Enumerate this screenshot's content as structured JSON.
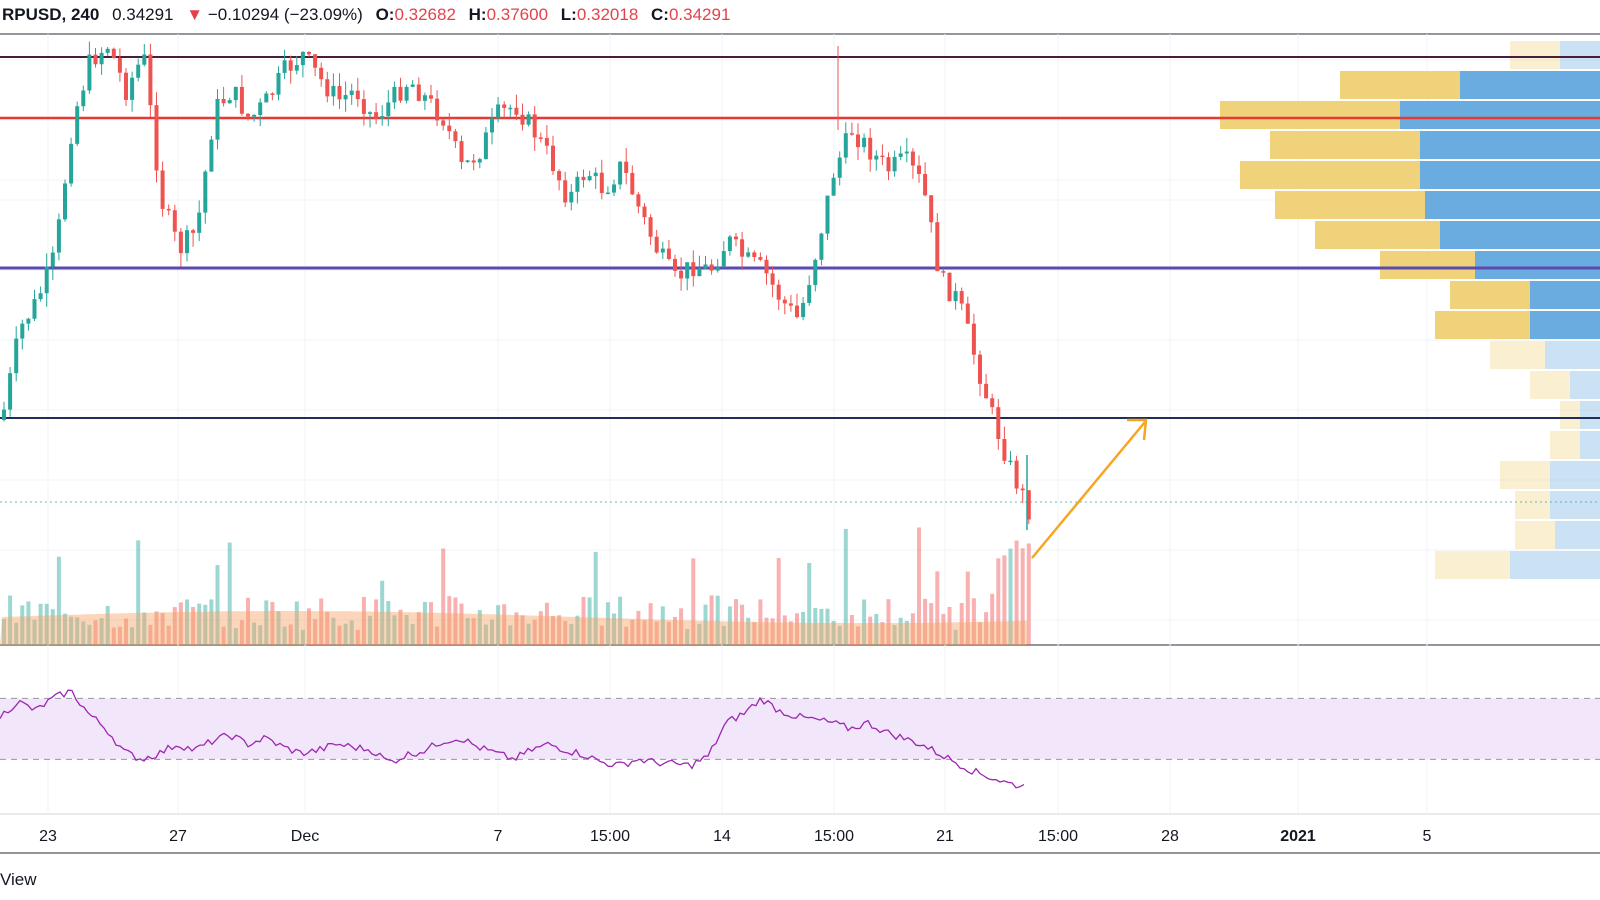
{
  "header": {
    "symbol": "RPUSD, 240",
    "last": "0.34291",
    "arrow": "▼",
    "change": "−0.10294 (−23.09%)",
    "o_label": "O:",
    "o_value": "0.32682",
    "h_label": "H:",
    "h_value": "0.37600",
    "l_label": "L:",
    "l_value": "0.32018",
    "c_label": "C:",
    "c_value": "0.34291"
  },
  "footer": {
    "text": "View"
  },
  "colors": {
    "up": "#26a69a",
    "down": "#ef5350",
    "rsi": "#9c27b0",
    "rsi_band": "#f2e6fb",
    "vp_up": "#f0d27a",
    "vp_down": "#6aace0",
    "arrow": "#f5a623",
    "line_top": "#4a1e3a",
    "line_red": "#e53935",
    "line_purple": "#5c4ab1",
    "line_navy": "#1f2d5a"
  },
  "chart_data": {
    "type": "candlestick",
    "x_tick_labels": [
      "23",
      "27",
      "Dec",
      "7",
      "15:00",
      "14",
      "15:00",
      "21",
      "15:00",
      "28",
      "2021",
      "5"
    ],
    "last_price": 0.34291,
    "horizontal_lines": [
      {
        "name": "top-line",
        "color": "#4a1e3a"
      },
      {
        "name": "red-line",
        "color": "#e53935"
      },
      {
        "name": "purple-line",
        "color": "#5c4ab1"
      },
      {
        "name": "navy-line",
        "color": "#1f2d5a"
      }
    ],
    "rsi_band": [
      30,
      70
    ],
    "price_path": [
      420,
      330,
      300,
      255,
      120,
      60,
      45,
      90,
      55,
      200,
      250,
      230,
      110,
      90,
      120,
      100,
      70,
      55,
      80,
      100,
      90,
      120,
      100,
      80,
      100,
      120,
      170,
      150,
      115,
      105,
      130,
      160,
      200,
      170,
      190,
      165,
      210,
      250,
      280,
      265,
      270,
      240,
      260,
      270,
      300,
      320,
      250,
      170,
      130,
      150,
      170,
      160,
      185,
      280,
      300,
      360,
      420,
      470,
      510
    ],
    "rsi_path": [
      58,
      68,
      62,
      70,
      75,
      60,
      50,
      35,
      30,
      34,
      40,
      36,
      42,
      46,
      40,
      44,
      38,
      34,
      36,
      40,
      38,
      36,
      28,
      33,
      36,
      42,
      44,
      38,
      34,
      30,
      36,
      40,
      36,
      33,
      28,
      26,
      30,
      28,
      27,
      26,
      32,
      54,
      60,
      70,
      62,
      58,
      56,
      54,
      50,
      54,
      48,
      44,
      40,
      34,
      28,
      22,
      18,
      14,
      12
    ],
    "volume_profile": [
      {
        "up": 50,
        "down": 40
      },
      {
        "up": 120,
        "down": 140
      },
      {
        "up": 180,
        "down": 200
      },
      {
        "up": 150,
        "down": 180
      },
      {
        "up": 180,
        "down": 180
      },
      {
        "up": 150,
        "down": 175
      },
      {
        "up": 125,
        "down": 160
      },
      {
        "up": 95,
        "down": 125
      },
      {
        "up": 80,
        "down": 70
      },
      {
        "up": 95,
        "down": 70
      },
      {
        "up": 55,
        "down": 55
      },
      {
        "up": 40,
        "down": 30
      },
      {
        "up": 20,
        "down": 20
      },
      {
        "up": 30,
        "down": 20
      },
      {
        "up": 50,
        "down": 50
      },
      {
        "up": 35,
        "down": 50
      },
      {
        "up": 40,
        "down": 45
      },
      {
        "up": 75,
        "down": 90
      }
    ]
  }
}
